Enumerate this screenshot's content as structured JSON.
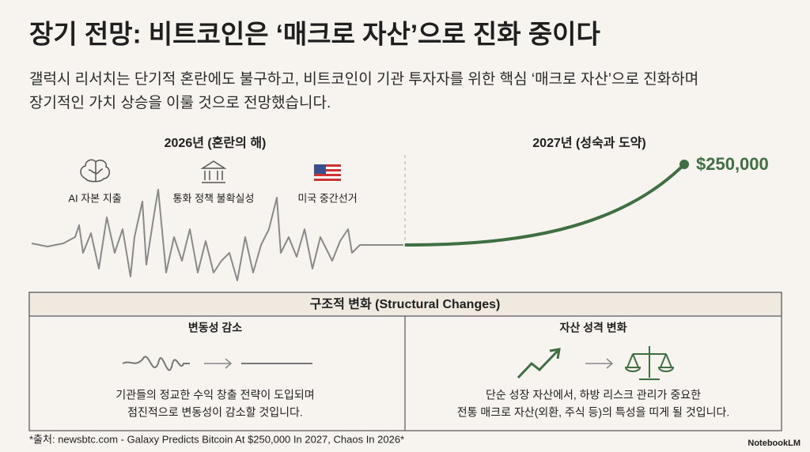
{
  "title": "장기 전망: 비트코인은 ‘매크로 자산’으로 진화 중이다",
  "subtitle": [
    "갤럭시 리서치는 단기적 혼란에도 불구하고, 비트코인이 기관 투자자를 위한 핵심 ‘매크로 자산’으로 진화하며",
    "장기적인 가치 상승을 이룰 것으로 전망했습니다."
  ],
  "timeline": {
    "left": {
      "heading": "2026년 (혼란의 해)",
      "factors": [
        "AI 자본 지출",
        "통화 정책 불확실성",
        "미국 중간선거"
      ]
    },
    "right": {
      "heading": "2027년 (성숙과 도약)",
      "target": "$250,000"
    }
  },
  "changes": {
    "heading": "구조적 변화 (Structural Changes)",
    "columns": [
      {
        "title": "변동성 감소",
        "text": [
          "기관들의 정교한 수익 창출 전략이 도입되며",
          "점진적으로 변동성이 감소할 것입니다."
        ]
      },
      {
        "title": "자산 성격 변화",
        "text": [
          "단순 성장 자산에서, 하방 리스크 관리가 중요한",
          "전통 매크로 자산(외환, 주식 등)의 특성을 띠게 될 것입니다."
        ]
      }
    ]
  },
  "footer": {
    "source": "*출처: newsbtc.com - Galaxy Predicts Bitcoin At $250,000 In 2027, Chaos In 2026*",
    "brand": "NotebookLM"
  }
}
